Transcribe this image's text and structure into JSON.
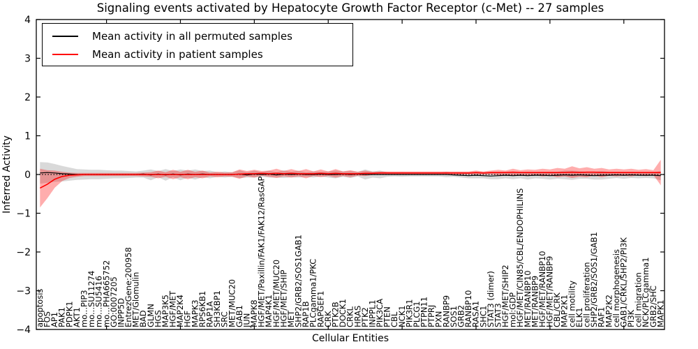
{
  "chart_data": {
    "type": "line",
    "title": "Signaling events activated by Hepatocyte Growth Factor Receptor (c-Met) -- 27 samples",
    "xlabel": "Cellular Entities",
    "ylabel": "Inferred Activity",
    "ylim": [
      -4,
      4
    ],
    "yticks": [
      4,
      3,
      2,
      1,
      0,
      -1,
      -2,
      -3,
      -4
    ],
    "x_major_ticks": [
      10,
      20,
      30,
      40,
      50,
      60,
      70,
      80
    ],
    "grid": false,
    "legend_position": "upper left",
    "zero_reference_line": "dotted black line at y=0",
    "categories": [
      "apoptosis",
      "FOS",
      "AP1",
      "PAK1",
      "PDPK1",
      "AKT1",
      "mo...PIP3",
      "mo...SU11274",
      "mo...SU5416",
      "mo...PHA665752",
      "GO:0007205",
      "INPP5D",
      "EntrezGene:200958",
      "MET/Glomulin",
      "BAD",
      "GLMN",
      "HGS",
      "MAP3K5",
      "HGF/MET",
      "MAP2K4",
      "HGF",
      "MAPK3",
      "RPS6KB1",
      "RAP1A",
      "SH3KBP1",
      "SRC",
      "MET/MUC20",
      "GAB1",
      "JUN",
      "MAPK8",
      "HGF/MET/Paxillin/FAK1/FAK12/RasGAP",
      "MAP4K1",
      "HGF/MET/MUC20",
      "HGF/MET/SHIP",
      "MET",
      "SHP2/GRB2/SOS1GAB1",
      "RAP1B",
      "PLCgamma1/PKC",
      "RAPGEF1",
      "CRK",
      "PTK2B",
      "DOCK1",
      "CRKL",
      "HRAS",
      "PTK2",
      "INPPL1",
      "PIK3CA",
      "PTEN",
      "CBL",
      "NCK1",
      "PIK3R1",
      "PLCG1",
      "PTPN11",
      "PTPRJ",
      "PXN",
      "RANBP9",
      "SOS1",
      "GRB2",
      "RANBP10",
      "RASA1",
      "SHC1",
      "STAT3 (dimer)",
      "STAT3",
      "HGF/MET/SHIP2",
      "mol:GDP",
      "HGF/MET/CIN85/CBL/ENDOPHILINS",
      "MET/RANBP10",
      "MET/RANBP9",
      "HGF/MET/RANBP10",
      "HGF/MET/RANBP9",
      "CBL/CRK",
      "MAP2K1",
      "cell motility",
      "ELK1",
      "cell proliferation",
      "SHP2/GRB2/SOS1/GAB1",
      "RAF1",
      "MAP2K2",
      "cell morphogenesis",
      "GAB1/CRKL/SHP2/PI3K",
      "PI3K",
      "cell migration",
      "NCK/PLCgamma1",
      "GRB2/SHC",
      "MAPK1"
    ],
    "series": [
      {
        "name": "Mean activity in all permuted samples",
        "color": "#000000",
        "band_color": "#aaaaaa",
        "band_opacity": 0.45,
        "values": [
          0.04,
          0.05,
          0.04,
          0.02,
          0.01,
          0,
          0,
          0,
          0,
          0,
          0,
          0,
          0,
          0,
          0.01,
          -0.01,
          0.01,
          -0.01,
          0.01,
          -0.01,
          0.01,
          0,
          0.01,
          0,
          0,
          0,
          0,
          0.01,
          -0.01,
          0.01,
          0,
          0.01,
          -0.01,
          0.01,
          0,
          0.01,
          0,
          0,
          0.01,
          0,
          0,
          0.01,
          0,
          0.01,
          0,
          0,
          0,
          0,
          0,
          0,
          0,
          0,
          0,
          0,
          0,
          0,
          -0.01,
          -0.02,
          -0.03,
          -0.02,
          -0.03,
          -0.04,
          -0.03,
          -0.02,
          -0.03,
          -0.02,
          -0.03,
          -0.02,
          -0.02,
          -0.03,
          -0.02,
          -0.01,
          -0.02,
          -0.01,
          -0.02,
          -0.03,
          -0.02,
          -0.02,
          -0.01,
          -0.02,
          -0.01,
          -0.02,
          -0.02,
          -0.02,
          -0.03
        ],
        "band_halfwidth": [
          0.28,
          0.26,
          0.23,
          0.2,
          0.17,
          0.14,
          0.13,
          0.12,
          0.12,
          0.11,
          0.1,
          0.1,
          0.09,
          0.08,
          0.09,
          0.14,
          0.08,
          0.15,
          0.08,
          0.14,
          0.09,
          0.13,
          0.08,
          0.1,
          0.06,
          0.08,
          0.06,
          0.1,
          0.07,
          0.09,
          0.06,
          0.09,
          0.07,
          0.1,
          0.07,
          0.09,
          0.06,
          0.08,
          0.06,
          0.08,
          0.1,
          0.07,
          0.09,
          0.06,
          0.13,
          0.08,
          0.1,
          0.06,
          0.05,
          0.06,
          0.05,
          0.05,
          0.05,
          0.05,
          0.05,
          0.07,
          0.05,
          0.06,
          0.07,
          0.08,
          0.07,
          0.08,
          0.09,
          0.08,
          0.09,
          0.08,
          0.1,
          0.08,
          0.09,
          0.1,
          0.09,
          0.11,
          0.12,
          0.1,
          0.09,
          0.1,
          0.11,
          0.09,
          0.08,
          0.09,
          0.08,
          0.08,
          0.07,
          0.08,
          0.12
        ]
      },
      {
        "name": "Mean activity in patient samples",
        "color": "#ff0000",
        "band_color": "#ff0000",
        "band_opacity": 0.32,
        "values": [
          -0.35,
          -0.25,
          -0.12,
          -0.05,
          -0.02,
          -0.01,
          0,
          0,
          0,
          0,
          0,
          0,
          0,
          0,
          0,
          0,
          0,
          0,
          0,
          0,
          0,
          0,
          0,
          0,
          0,
          0,
          0,
          0.01,
          0.02,
          0.02,
          0.03,
          0.02,
          0.03,
          0.02,
          0.03,
          0.02,
          0.02,
          0.02,
          0.03,
          0.02,
          0.03,
          0.02,
          0.02,
          0.02,
          0.03,
          0.03,
          0.04,
          0.04,
          0.04,
          0.04,
          0.04,
          0.04,
          0.04,
          0.04,
          0.04,
          0.04,
          0.04,
          0.04,
          0.04,
          0.05,
          0.04,
          0.05,
          0.05,
          0.05,
          0.06,
          0.05,
          0.05,
          0.05,
          0.05,
          0.05,
          0.05,
          0.05,
          0.06,
          0.05,
          0.06,
          0.06,
          0.05,
          0.05,
          0.05,
          0.05,
          0.05,
          0.05,
          0.05,
          0.05,
          0.05
        ],
        "band_halfwidth": [
          0.5,
          0.36,
          0.22,
          0.12,
          0.07,
          0.05,
          0.04,
          0.04,
          0.04,
          0.04,
          0.04,
          0.04,
          0.04,
          0.04,
          0.05,
          0.06,
          0.1,
          0.06,
          0.12,
          0.07,
          0.12,
          0.07,
          0.1,
          0.05,
          0.07,
          0.05,
          0.06,
          0.12,
          0.07,
          0.1,
          0.06,
          0.08,
          0.12,
          0.07,
          0.11,
          0.07,
          0.12,
          0.06,
          0.1,
          0.06,
          0.11,
          0.06,
          0.09,
          0.05,
          0.07,
          0.04,
          0.04,
          0.04,
          0.04,
          0.04,
          0.04,
          0.04,
          0.04,
          0.04,
          0.04,
          0.04,
          0.04,
          0.04,
          0.04,
          0.05,
          0.04,
          0.05,
          0.07,
          0.05,
          0.09,
          0.06,
          0.08,
          0.07,
          0.1,
          0.08,
          0.12,
          0.1,
          0.15,
          0.11,
          0.13,
          0.09,
          0.12,
          0.08,
          0.1,
          0.08,
          0.1,
          0.07,
          0.09,
          0.06,
          0.33
        ]
      }
    ]
  }
}
